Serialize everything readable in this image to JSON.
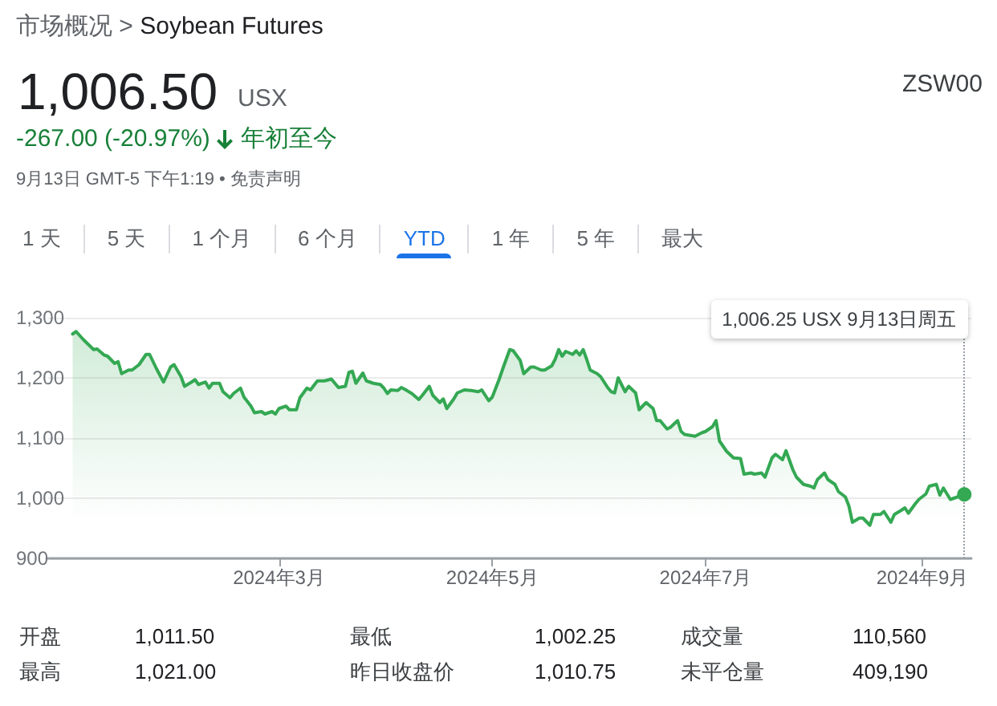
{
  "chart_data": {
    "type": "area",
    "title": "Soybean Futures",
    "annotations": [
      "市场概况 >",
      "1,006.50",
      "USX",
      "ZSW00",
      "-267.00 (-20.97%)",
      "年初至今",
      "9月13日 GMT-5 下午1:19 • 免责声明",
      "1 天",
      "5 天",
      "1 个月",
      "6 个月",
      "YTD",
      "1 年",
      "5 年",
      "最大",
      "开盘",
      "1,011.50",
      "最低",
      "1,002.25",
      "成交量",
      "110,560",
      "最高",
      "1,021.00",
      "昨日收盘价",
      "1,010.75",
      "未平仓量",
      "409,190"
    ],
    "x": [
      "2024-01-02",
      "2024-01-03",
      "2024-01-05",
      "2024-01-08",
      "2024-01-09",
      "2024-01-11",
      "2024-01-12",
      "2024-01-14",
      "2024-01-15",
      "2024-01-16",
      "2024-01-18",
      "2024-01-19",
      "2024-01-21",
      "2024-01-23",
      "2024-01-24",
      "2024-01-26",
      "2024-01-28",
      "2024-01-30",
      "2024-01-31",
      "2024-02-02",
      "2024-02-03",
      "2024-02-05",
      "2024-02-06",
      "2024-02-07",
      "2024-02-09",
      "2024-02-10",
      "2024-02-11",
      "2024-02-13",
      "2024-02-14",
      "2024-02-16",
      "2024-02-17",
      "2024-02-19",
      "2024-02-20",
      "2024-02-22",
      "2024-02-23",
      "2024-02-25",
      "2024-02-26",
      "2024-02-28",
      "2024-02-29",
      "2024-03-01",
      "2024-03-03",
      "2024-03-04",
      "2024-03-06",
      "2024-03-07",
      "2024-03-09",
      "2024-03-10",
      "2024-03-12",
      "2024-03-14",
      "2024-03-16",
      "2024-03-18",
      "2024-03-20",
      "2024-03-21",
      "2024-03-22",
      "2024-03-23",
      "2024-03-25",
      "2024-03-26",
      "2024-03-28",
      "2024-03-30",
      "2024-03-31",
      "2024-04-01",
      "2024-04-02",
      "2024-04-04",
      "2024-04-05",
      "2024-04-06",
      "2024-04-08",
      "2024-04-10",
      "2024-04-11",
      "2024-04-13",
      "2024-04-14",
      "2024-04-16",
      "2024-04-17",
      "2024-04-18",
      "2024-04-20",
      "2024-04-21",
      "2024-04-23",
      "2024-04-25",
      "2024-04-27",
      "2024-04-28",
      "2024-04-30",
      "2024-05-01",
      "2024-05-03",
      "2024-05-04",
      "2024-05-06",
      "2024-05-07",
      "2024-05-09",
      "2024-05-10",
      "2024-05-12",
      "2024-05-13",
      "2024-05-15",
      "2024-05-16",
      "2024-05-18",
      "2024-05-19",
      "2024-05-20",
      "2024-05-21",
      "2024-05-22",
      "2024-05-24",
      "2024-05-25",
      "2024-05-26",
      "2024-05-27",
      "2024-05-28",
      "2024-05-29",
      "2024-05-31",
      "2024-06-01",
      "2024-06-03",
      "2024-06-04",
      "2024-06-05",
      "2024-06-06",
      "2024-06-08",
      "2024-06-09",
      "2024-06-11",
      "2024-06-12",
      "2024-06-14",
      "2024-06-16",
      "2024-06-17",
      "2024-06-18",
      "2024-06-20",
      "2024-06-21",
      "2024-06-23",
      "2024-06-24",
      "2024-06-25",
      "2024-06-28",
      "2024-06-30",
      "2024-07-01",
      "2024-07-03",
      "2024-07-04",
      "2024-07-05",
      "2024-07-07",
      "2024-07-09",
      "2024-07-11",
      "2024-07-12",
      "2024-07-14",
      "2024-07-15",
      "2024-07-17",
      "2024-07-18",
      "2024-07-20",
      "2024-07-21",
      "2024-07-23",
      "2024-07-24",
      "2024-07-26",
      "2024-07-27",
      "2024-07-29",
      "2024-07-31",
      "2024-08-01",
      "2024-08-02",
      "2024-08-04",
      "2024-08-05",
      "2024-08-07",
      "2024-08-08",
      "2024-08-10",
      "2024-08-11",
      "2024-08-12",
      "2024-08-14",
      "2024-08-15",
      "2024-08-17",
      "2024-08-18",
      "2024-08-20",
      "2024-08-21",
      "2024-08-23",
      "2024-08-24",
      "2024-08-26",
      "2024-08-27",
      "2024-08-28",
      "2024-08-30",
      "2024-08-31",
      "2024-09-02",
      "2024-09-03",
      "2024-09-05",
      "2024-09-06",
      "2024-09-07",
      "2024-09-09",
      "2024-09-11",
      "2024-09-12",
      "2024-09-13"
    ],
    "values": [
      1273,
      1277,
      1264,
      1247,
      1248,
      1238,
      1236,
      1224,
      1227,
      1207,
      1213,
      1213,
      1222,
      1239,
      1239,
      1215,
      1193,
      1218,
      1222,
      1202,
      1186,
      1193,
      1197,
      1189,
      1193,
      1183,
      1191,
      1191,
      1177,
      1167,
      1174,
      1183,
      1168,
      1153,
      1142,
      1144,
      1140,
      1144,
      1140,
      1149,
      1153,
      1147,
      1147,
      1167,
      1183,
      1180,
      1195,
      1195,
      1198,
      1184,
      1186,
      1209,
      1211,
      1191,
      1208,
      1195,
      1191,
      1189,
      1183,
      1174,
      1180,
      1179,
      1184,
      1181,
      1174,
      1164,
      1171,
      1186,
      1171,
      1159,
      1165,
      1149,
      1165,
      1175,
      1180,
      1179,
      1177,
      1180,
      1162,
      1168,
      1198,
      1215,
      1247,
      1245,
      1229,
      1207,
      1218,
      1218,
      1213,
      1213,
      1220,
      1231,
      1247,
      1236,
      1244,
      1239,
      1245,
      1238,
      1247,
      1231,
      1213,
      1207,
      1202,
      1184,
      1177,
      1175,
      1200,
      1177,
      1186,
      1175,
      1147,
      1159,
      1149,
      1129,
      1129,
      1115,
      1118,
      1129,
      1111,
      1106,
      1103,
      1109,
      1111,
      1119,
      1129,
      1095,
      1078,
      1067,
      1066,
      1040,
      1042,
      1040,
      1042,
      1035,
      1067,
      1073,
      1064,
      1079,
      1047,
      1035,
      1023,
      1020,
      1017,
      1031,
      1042,
      1031,
      1023,
      1011,
      1002,
      987,
      960,
      967,
      967,
      955,
      973,
      973,
      978,
      960,
      973,
      980,
      984,
      975,
      991,
      998,
      1007,
      1020,
      1023,
      1005,
      1017,
      998,
      1002,
      1007,
      1006.25
    ],
    "color": "#34a853",
    "xlim": [
      "2023-12-26",
      "2024-09-15"
    ],
    "xticks": [
      {
        "value": "2024-03-01",
        "label": "2024年3月"
      },
      {
        "value": "2024-05-01",
        "label": "2024年5月"
      },
      {
        "value": "2024-07-01",
        "label": "2024年7月"
      },
      {
        "value": "2024-09-01",
        "label": "2024年9月"
      }
    ],
    "ylim": [
      900,
      1300
    ],
    "yticks": [
      900,
      {
        "value": 1000,
        "label": "1,000"
      },
      {
        "value": 1100,
        "label": "1,100"
      },
      {
        "value": 1200,
        "label": "1,200"
      },
      {
        "value": 1300,
        "label": "1,300"
      }
    ],
    "grid": "y",
    "ref_lines": [
      {
        "axis": "x",
        "value": "2024-09-13",
        "label": "1,006.25 USX 9月13日周五",
        "color": "#9aa0a6",
        "line_style": "dotted"
      }
    ]
  }
}
